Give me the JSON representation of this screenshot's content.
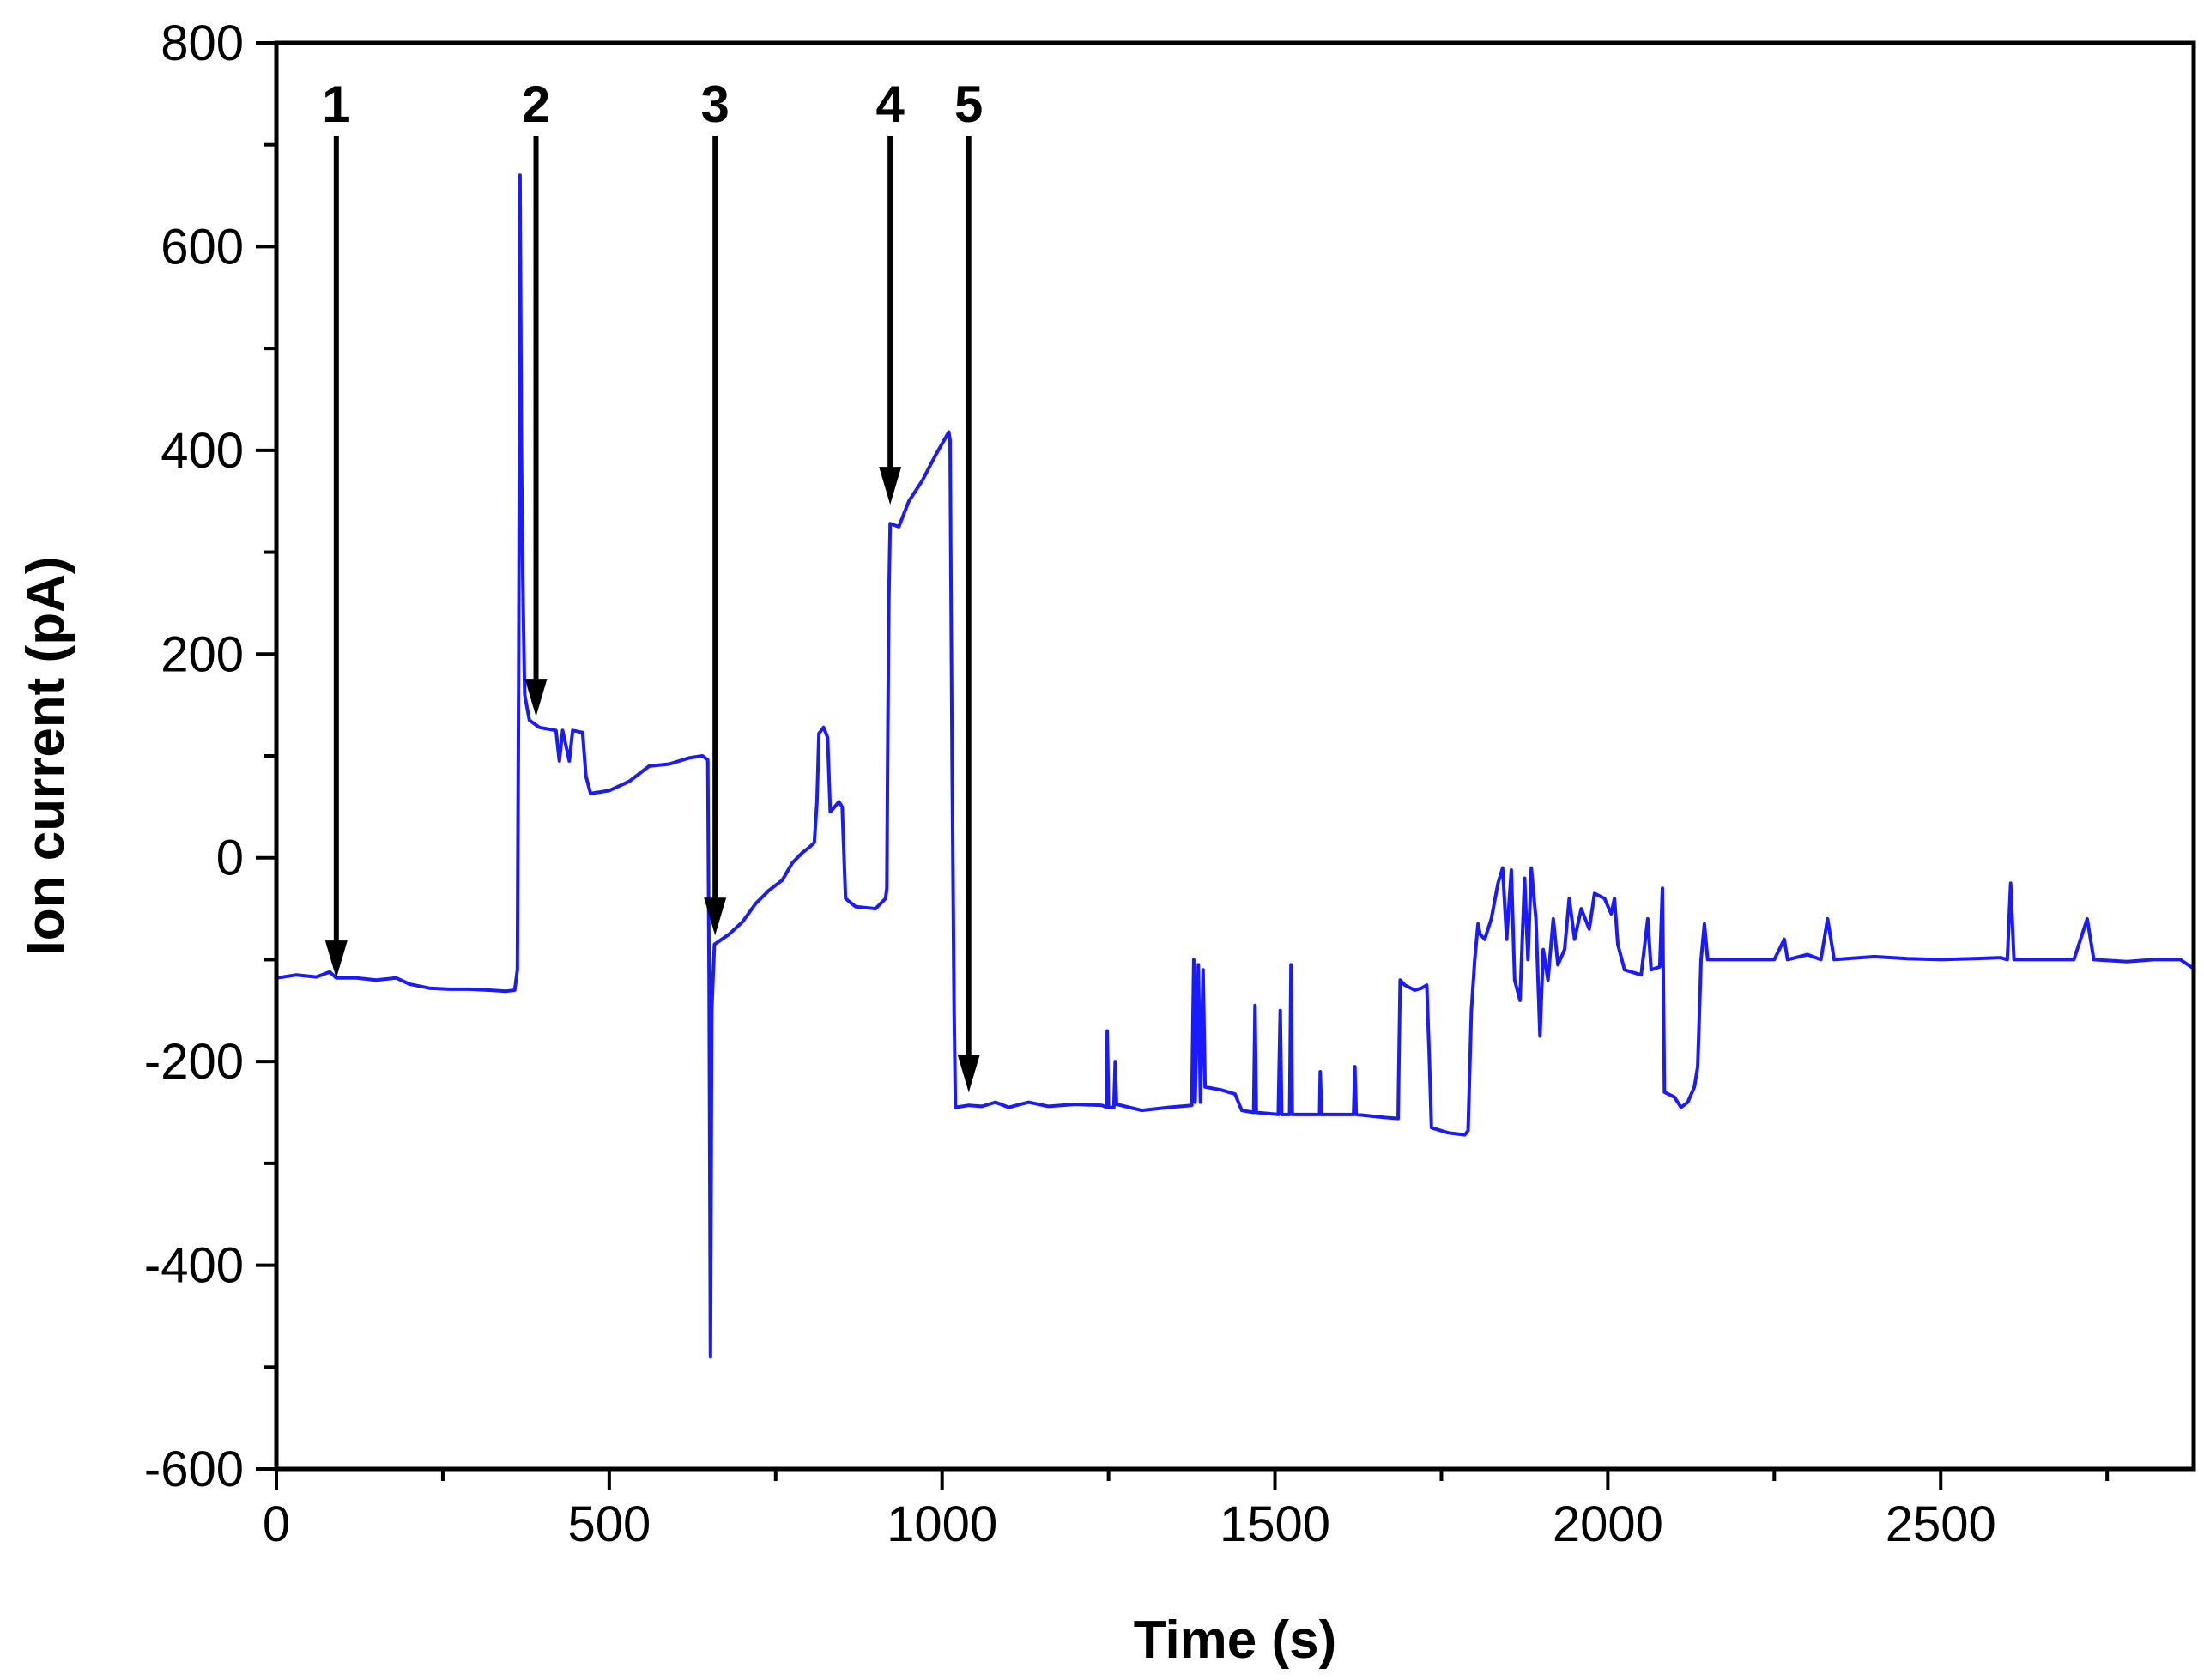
{
  "chart_data": {
    "type": "line",
    "title": "",
    "xlabel": "Time (s)",
    "ylabel": "Ion current (pA)",
    "xlim": [
      0,
      2880
    ],
    "ylim": [
      -600,
      800
    ],
    "x_ticks": [
      0,
      500,
      1000,
      1500,
      2000,
      2500
    ],
    "x_tick_labels": [
      "0",
      "500",
      "1000",
      "1500",
      "2000",
      "2500"
    ],
    "y_ticks": [
      -600,
      -400,
      -200,
      0,
      200,
      400,
      600,
      800
    ],
    "y_tick_labels": [
      "-600",
      "-400",
      "-200",
      "0",
      "200",
      "400",
      "600",
      "800"
    ],
    "x_minor_step": 250,
    "y_minor_step": 100,
    "grid": false,
    "legend": "none",
    "line_color": "#1a1aff",
    "arrow_color": "#000000",
    "series": [
      {
        "points": [
          [
            0,
            -118
          ],
          [
            30,
            -115
          ],
          [
            60,
            -117
          ],
          [
            80,
            -112
          ],
          [
            90,
            -118
          ],
          [
            120,
            -118
          ],
          [
            150,
            -120
          ],
          [
            180,
            -118
          ],
          [
            200,
            -124
          ],
          [
            230,
            -128
          ],
          [
            260,
            -129
          ],
          [
            290,
            -129
          ],
          [
            320,
            -130
          ],
          [
            345,
            -131
          ],
          [
            358,
            -130
          ],
          [
            362,
            -110
          ],
          [
            364,
            200
          ],
          [
            366,
            670
          ],
          [
            368,
            400
          ],
          [
            370,
            280
          ],
          [
            373,
            160
          ],
          [
            380,
            135
          ],
          [
            395,
            128
          ],
          [
            420,
            125
          ],
          [
            425,
            95
          ],
          [
            430,
            125
          ],
          [
            440,
            95
          ],
          [
            445,
            125
          ],
          [
            460,
            123
          ],
          [
            465,
            80
          ],
          [
            472,
            63
          ],
          [
            500,
            66
          ],
          [
            530,
            75
          ],
          [
            560,
            90
          ],
          [
            590,
            92
          ],
          [
            620,
            98
          ],
          [
            640,
            100
          ],
          [
            648,
            96
          ],
          [
            650,
            -120
          ],
          [
            652,
            -490
          ],
          [
            654,
            -150
          ],
          [
            658,
            -85
          ],
          [
            680,
            -75
          ],
          [
            700,
            -63
          ],
          [
            720,
            -45
          ],
          [
            740,
            -32
          ],
          [
            760,
            -22
          ],
          [
            775,
            -5
          ],
          [
            790,
            5
          ],
          [
            800,
            10
          ],
          [
            808,
            15
          ],
          [
            812,
            55
          ],
          [
            815,
            122
          ],
          [
            822,
            128
          ],
          [
            828,
            118
          ],
          [
            832,
            45
          ],
          [
            845,
            55
          ],
          [
            850,
            50
          ],
          [
            855,
            -40
          ],
          [
            870,
            -48
          ],
          [
            900,
            -50
          ],
          [
            915,
            -40
          ],
          [
            917,
            -30
          ],
          [
            918,
            80
          ],
          [
            920,
            250
          ],
          [
            922,
            328
          ],
          [
            935,
            325
          ],
          [
            950,
            350
          ],
          [
            970,
            370
          ],
          [
            990,
            395
          ],
          [
            1010,
            418
          ],
          [
            1012,
            410
          ],
          [
            1015,
            100
          ],
          [
            1018,
            -150
          ],
          [
            1020,
            -245
          ],
          [
            1040,
            -243
          ],
          [
            1060,
            -244
          ],
          [
            1080,
            -240
          ],
          [
            1100,
            -245
          ],
          [
            1130,
            -240
          ],
          [
            1160,
            -244
          ],
          [
            1200,
            -242
          ],
          [
            1240,
            -243
          ],
          [
            1247,
            -245
          ],
          [
            1248,
            -170
          ],
          [
            1250,
            -245
          ],
          [
            1258,
            -245
          ],
          [
            1260,
            -200
          ],
          [
            1262,
            -242
          ],
          [
            1300,
            -248
          ],
          [
            1340,
            -245
          ],
          [
            1375,
            -243
          ],
          [
            1378,
            -100
          ],
          [
            1380,
            -240
          ],
          [
            1385,
            -105
          ],
          [
            1388,
            -240
          ],
          [
            1392,
            -110
          ],
          [
            1395,
            -225
          ],
          [
            1420,
            -228
          ],
          [
            1440,
            -232
          ],
          [
            1450,
            -248
          ],
          [
            1468,
            -250
          ],
          [
            1470,
            -145
          ],
          [
            1472,
            -250
          ],
          [
            1505,
            -252
          ],
          [
            1508,
            -150
          ],
          [
            1510,
            -252
          ],
          [
            1522,
            -252
          ],
          [
            1524,
            -105
          ],
          [
            1526,
            -252
          ],
          [
            1567,
            -252
          ],
          [
            1568,
            -210
          ],
          [
            1570,
            -252
          ],
          [
            1618,
            -252
          ],
          [
            1620,
            -205
          ],
          [
            1622,
            -252
          ],
          [
            1665,
            -255
          ],
          [
            1685,
            -256
          ],
          [
            1688,
            -120
          ],
          [
            1695,
            -125
          ],
          [
            1710,
            -130
          ],
          [
            1720,
            -128
          ],
          [
            1728,
            -125
          ],
          [
            1732,
            -200
          ],
          [
            1735,
            -265
          ],
          [
            1760,
            -270
          ],
          [
            1785,
            -272
          ],
          [
            1790,
            -268
          ],
          [
            1795,
            -150
          ],
          [
            1800,
            -100
          ],
          [
            1805,
            -65
          ],
          [
            1808,
            -75
          ],
          [
            1815,
            -80
          ],
          [
            1825,
            -60
          ],
          [
            1835,
            -25
          ],
          [
            1842,
            -10
          ],
          [
            1848,
            -80
          ],
          [
            1855,
            -12
          ],
          [
            1860,
            -120
          ],
          [
            1868,
            -140
          ],
          [
            1875,
            -20
          ],
          [
            1880,
            -100
          ],
          [
            1885,
            -10
          ],
          [
            1892,
            -60
          ],
          [
            1898,
            -175
          ],
          [
            1903,
            -90
          ],
          [
            1910,
            -120
          ],
          [
            1918,
            -60
          ],
          [
            1925,
            -105
          ],
          [
            1935,
            -90
          ],
          [
            1942,
            -40
          ],
          [
            1950,
            -80
          ],
          [
            1960,
            -50
          ],
          [
            1972,
            -70
          ],
          [
            1980,
            -35
          ],
          [
            1995,
            -40
          ],
          [
            2005,
            -55
          ],
          [
            2010,
            -40
          ],
          [
            2015,
            -85
          ],
          [
            2025,
            -110
          ],
          [
            2050,
            -115
          ],
          [
            2060,
            -60
          ],
          [
            2065,
            -110
          ],
          [
            2078,
            -107
          ],
          [
            2082,
            -30
          ],
          [
            2085,
            -230
          ],
          [
            2100,
            -235
          ],
          [
            2110,
            -245
          ],
          [
            2120,
            -240
          ],
          [
            2130,
            -225
          ],
          [
            2135,
            -205
          ],
          [
            2140,
            -100
          ],
          [
            2145,
            -65
          ],
          [
            2150,
            -100
          ],
          [
            2200,
            -100
          ],
          [
            2250,
            -100
          ],
          [
            2265,
            -80
          ],
          [
            2270,
            -100
          ],
          [
            2300,
            -95
          ],
          [
            2320,
            -100
          ],
          [
            2330,
            -60
          ],
          [
            2340,
            -100
          ],
          [
            2400,
            -97
          ],
          [
            2450,
            -99
          ],
          [
            2500,
            -100
          ],
          [
            2550,
            -99
          ],
          [
            2590,
            -98
          ],
          [
            2600,
            -100
          ],
          [
            2605,
            -25
          ],
          [
            2610,
            -100
          ],
          [
            2650,
            -100
          ],
          [
            2700,
            -100
          ],
          [
            2720,
            -60
          ],
          [
            2730,
            -100
          ],
          [
            2780,
            -102
          ],
          [
            2820,
            -100
          ],
          [
            2860,
            -100
          ],
          [
            2878,
            -108
          ]
        ]
      }
    ],
    "annotations": [
      {
        "label": "1",
        "x": 90,
        "y_tip": -120
      },
      {
        "label": "2",
        "x": 390,
        "y_tip": 137
      },
      {
        "label": "3",
        "x": 659,
        "y_tip": -78
      },
      {
        "label": "4",
        "x": 922,
        "y_tip": 345
      },
      {
        "label": "5",
        "x": 1040,
        "y_tip": -232
      }
    ]
  }
}
